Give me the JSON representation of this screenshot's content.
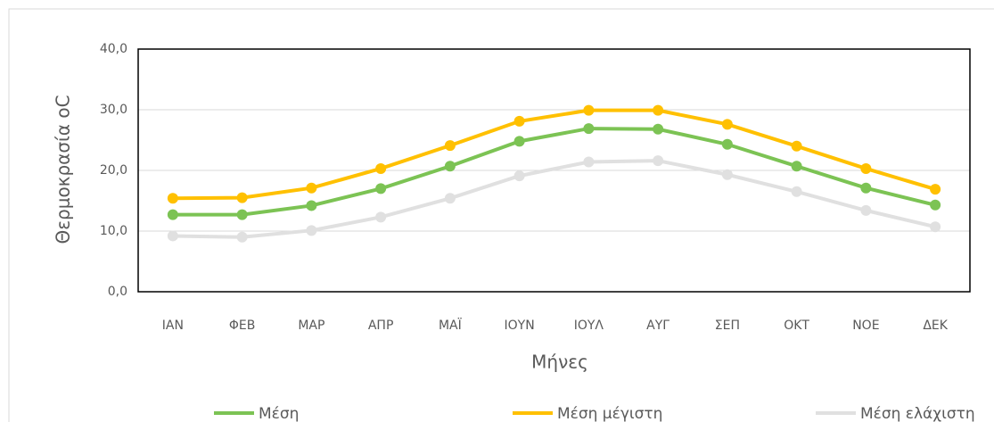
{
  "chart_data": {
    "type": "line",
    "y_label": "Θερμοκρασία oC",
    "x_label": "Μήνες",
    "categories": [
      "ΙΑΝ",
      "ΦΕΒ",
      "ΜΑΡ",
      "ΑΠΡ",
      "ΜΑΪ",
      "ΙΟΥΝ",
      "ΙΟΥΛ",
      "ΑΥΓ",
      "ΣΕΠ",
      "ΟΚΤ",
      "ΝΟΕ",
      "ΔΕΚ"
    ],
    "series": [
      {
        "name": "Μέση",
        "color": "#7cc354",
        "values": [
          12.7,
          12.7,
          14.2,
          17.0,
          20.7,
          24.8,
          26.9,
          26.8,
          24.3,
          20.7,
          17.1,
          14.3
        ]
      },
      {
        "name": "Μέση μέγιστη",
        "color": "#ffc000",
        "values": [
          15.4,
          15.5,
          17.1,
          20.3,
          24.1,
          28.1,
          29.9,
          29.9,
          27.6,
          24.0,
          20.3,
          16.9
        ]
      },
      {
        "name": "Μέση ελάχιστη",
        "color": "#e0e0e0",
        "values": [
          9.2,
          9.0,
          10.1,
          12.3,
          15.4,
          19.1,
          21.4,
          21.6,
          19.3,
          16.5,
          13.4,
          10.7
        ]
      }
    ],
    "ylim": [
      0,
      40
    ],
    "yticks": [
      {
        "value": 0,
        "label": "0,0"
      },
      {
        "value": 10,
        "label": "10,0"
      },
      {
        "value": 20,
        "label": "20,0"
      },
      {
        "value": 30,
        "label": "30,0"
      },
      {
        "value": 40,
        "label": "40,0"
      }
    ],
    "grid": true,
    "legend": "bottom"
  }
}
